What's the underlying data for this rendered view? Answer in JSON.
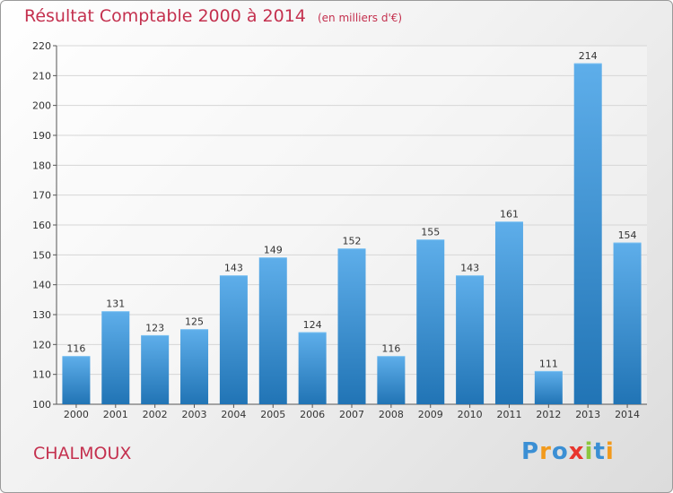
{
  "header": {
    "title": "Résultat Comptable 2000 à 2014",
    "subtitle": "(en milliers d'€)"
  },
  "location": "CHALMOUX",
  "logo": {
    "text": "Proxiti",
    "letters": [
      {
        "ch": "P",
        "color": "#3b8fd4"
      },
      {
        "ch": "r",
        "color": "#f29a1c"
      },
      {
        "ch": "o",
        "color": "#3b8fd4"
      },
      {
        "ch": "x",
        "color": "#e8352e"
      },
      {
        "ch": "i",
        "color": "#8cc63f"
      },
      {
        "ch": "t",
        "color": "#3b8fd4"
      },
      {
        "ch": "i",
        "color": "#f29a1c"
      }
    ]
  },
  "colors": {
    "accent": "#c4304e",
    "bar_top": "#5eaeea",
    "bar_bottom": "#2174b5",
    "grid": "#d6d6d6"
  },
  "chart_data": {
    "type": "bar",
    "title": "Résultat Comptable 2000 à 2014",
    "subtitle": "(en milliers d'€)",
    "categories": [
      "2000",
      "2001",
      "2002",
      "2003",
      "2004",
      "2005",
      "2006",
      "2007",
      "2008",
      "2009",
      "2010",
      "2011",
      "2012",
      "2013",
      "2014"
    ],
    "values": [
      116,
      131,
      123,
      125,
      143,
      149,
      124,
      152,
      116,
      155,
      143,
      161,
      111,
      214,
      154
    ],
    "ylim": [
      100,
      220
    ],
    "yticks": [
      100,
      110,
      120,
      130,
      140,
      150,
      160,
      170,
      180,
      190,
      200,
      210,
      220
    ],
    "grid": true,
    "data_labels": true
  }
}
